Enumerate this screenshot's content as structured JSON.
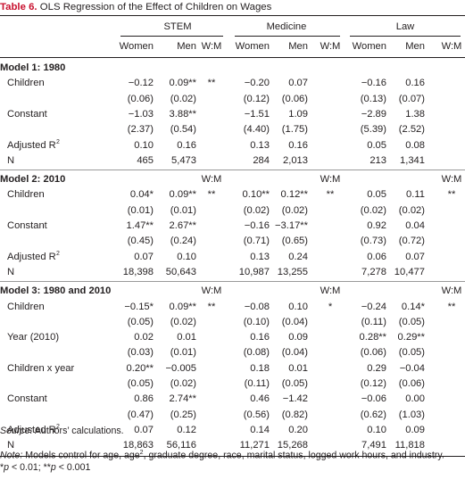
{
  "caption": {
    "label": "Table 6.",
    "text": " OLS Regression of the Effect of Children on Wages"
  },
  "fields": [
    {
      "name": "STEM",
      "cols": [
        "Women",
        "Men",
        "W:M"
      ]
    },
    {
      "name": "Medicine",
      "cols": [
        "Women",
        "Men",
        "W:M"
      ]
    },
    {
      "name": "Law",
      "cols": [
        "Women",
        "Men",
        "W:M"
      ]
    }
  ],
  "sections": [
    {
      "title": "Model 1: 1980",
      "wm_header": [
        "",
        "",
        ""
      ],
      "rows": [
        {
          "label": "Children",
          "cells": [
            "−0.12",
            "0.09**",
            "**",
            "−0.20",
            "0.07",
            "",
            "−0.16",
            "0.16",
            ""
          ]
        },
        {
          "label": "",
          "cells": [
            "(0.06)",
            "(0.02)",
            "",
            "(0.12)",
            "(0.06)",
            "",
            "(0.13)",
            "(0.07)",
            ""
          ]
        },
        {
          "label": "Constant",
          "cells": [
            "−1.03",
            "3.88**",
            "",
            "−1.51",
            "1.09",
            "",
            "−2.89",
            "1.38",
            ""
          ]
        },
        {
          "label": "",
          "cells": [
            "(2.37)",
            "(0.54)",
            "",
            "(4.40)",
            "(1.75)",
            "",
            "(5.39)",
            "(2.52)",
            ""
          ]
        },
        {
          "label": "Adjusted R",
          "sup": "2",
          "cells": [
            "0.10",
            "0.16",
            "",
            "0.13",
            "0.16",
            "",
            "0.05",
            "0.08",
            ""
          ]
        },
        {
          "label": "N",
          "n_row": true,
          "cells": [
            "465",
            "5,473",
            "",
            "284",
            "2,013",
            "",
            "213",
            "1,341",
            ""
          ]
        }
      ]
    },
    {
      "title": "Model 2: 2010",
      "wm_header": [
        "W:M",
        "W:M",
        "W:M"
      ],
      "rows": [
        {
          "label": "Children",
          "cells": [
            "0.04*",
            "0.09**",
            "**",
            "0.10**",
            "0.12**",
            "**",
            "0.05",
            "0.11",
            "**"
          ]
        },
        {
          "label": "",
          "cells": [
            "(0.01)",
            "(0.01)",
            "",
            "(0.02)",
            "(0.02)",
            "",
            "(0.02)",
            "(0.02)",
            ""
          ]
        },
        {
          "label": "Constant",
          "cells": [
            "1.47**",
            "2.67**",
            "",
            "−0.16",
            "−3.17**",
            "",
            "0.92",
            "0.04",
            ""
          ]
        },
        {
          "label": "",
          "cells": [
            "(0.45)",
            "(0.24)",
            "",
            "(0.71)",
            "(0.65)",
            "",
            "(0.73)",
            "(0.72)",
            ""
          ]
        },
        {
          "label": "Adjusted R",
          "sup": "2",
          "cells": [
            "0.07",
            "0.10",
            "",
            "0.13",
            "0.24",
            "",
            "0.06",
            "0.07",
            ""
          ]
        },
        {
          "label": "N",
          "n_row": true,
          "cells": [
            "18,398",
            "50,643",
            "",
            "10,987",
            "13,255",
            "",
            "7,278",
            "10,477",
            ""
          ]
        }
      ]
    },
    {
      "title": "Model 3: 1980 and 2010",
      "wm_header": [
        "W:M",
        "W:M",
        "W:M"
      ],
      "rows": [
        {
          "label": "Children",
          "cells": [
            "−0.15*",
            "0.09**",
            "**",
            "−0.08",
            "0.10",
            "*",
            "−0.24",
            "0.14*",
            "**"
          ]
        },
        {
          "label": "",
          "cells": [
            "(0.05)",
            "(0.02)",
            "",
            "(0.10)",
            "(0.04)",
            "",
            "(0.11)",
            "(0.05)",
            ""
          ]
        },
        {
          "label": "Year (2010)",
          "cells": [
            "0.02",
            "0.01",
            "",
            "0.16",
            "0.09",
            "",
            "0.28**",
            "0.29**",
            ""
          ]
        },
        {
          "label": "",
          "cells": [
            "(0.03)",
            "(0.01)",
            "",
            "(0.08)",
            "(0.04)",
            "",
            "(0.06)",
            "(0.05)",
            ""
          ]
        },
        {
          "label": "Children x year",
          "cells": [
            "0.20**",
            "−0.005",
            "",
            "0.18",
            "0.01",
            "",
            "0.29",
            "−0.04",
            ""
          ]
        },
        {
          "label": "",
          "cells": [
            "(0.05)",
            "(0.02)",
            "",
            "(0.11)",
            "(0.05)",
            "",
            "(0.12)",
            "(0.06)",
            ""
          ]
        },
        {
          "label": "Constant",
          "cells": [
            "0.86",
            "2.74**",
            "",
            "0.46",
            "−1.42",
            "",
            "−0.06",
            "0.00",
            ""
          ]
        },
        {
          "label": "",
          "cells": [
            "(0.47)",
            "(0.25)",
            "",
            "(0.56)",
            "(0.82)",
            "",
            "(0.62)",
            "(1.03)",
            ""
          ]
        },
        {
          "label": "Adjusted R",
          "sup": "2",
          "cells": [
            "0.07",
            "0.12",
            "",
            "0.14",
            "0.20",
            "",
            "0.10",
            "0.09",
            ""
          ]
        },
        {
          "label": "N",
          "n_row": true,
          "cells": [
            "18,863",
            "56,116",
            "",
            "11,271",
            "15,268",
            "",
            "7,491",
            "11,818",
            ""
          ]
        }
      ]
    }
  ],
  "notes": {
    "source_label": "Source:",
    "source_text": " Authors’ calculations.",
    "note_label": "Note:",
    "note_text_1": " Models control for age, age",
    "note_sup": "2",
    "note_text_2": ", graduate degree, race, marital status, logged work hours, and industry.",
    "sig_p1": "p",
    "sig_text_1": " < 0.01; **",
    "sig_p2": "p",
    "sig_text_2": " < 0.001",
    "sig_star": "*"
  }
}
